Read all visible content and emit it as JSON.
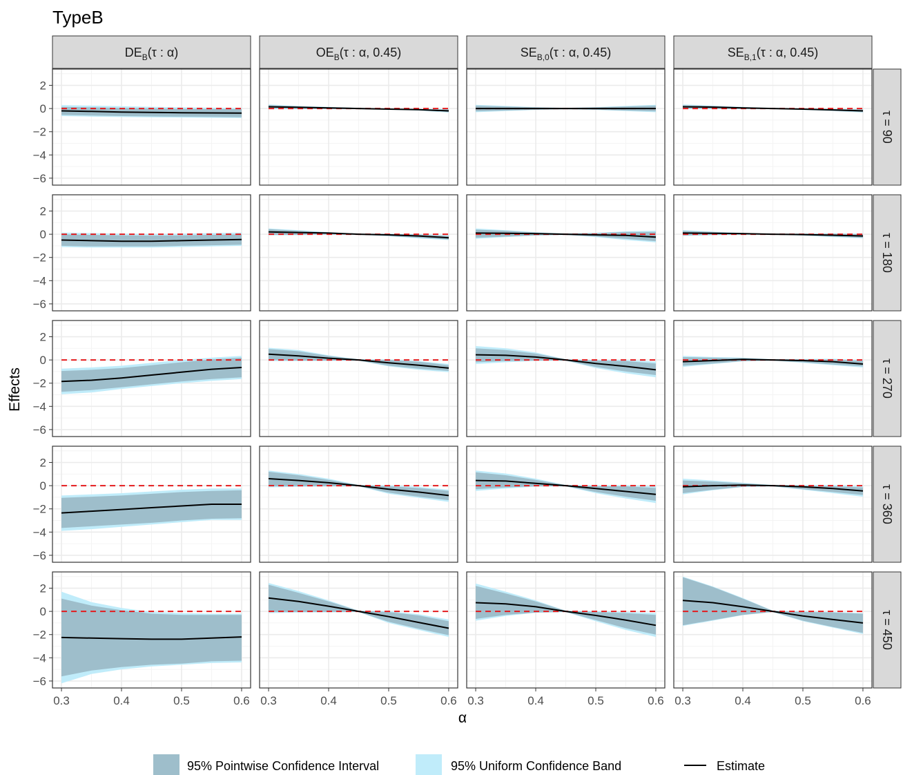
{
  "chart_data": {
    "type": "line",
    "title": "TypeB",
    "xlabel": "α",
    "ylabel": "Effects",
    "xlim": [
      0.285,
      0.615
    ],
    "ylim": [
      -6.6,
      3.4
    ],
    "x_ticks": [
      0.3,
      0.4,
      0.5,
      0.6
    ],
    "x_tick_labels": [
      "0.3",
      "0.4",
      "0.5",
      "0.6"
    ],
    "y_ticks": [
      2,
      0,
      -2,
      -4,
      -6
    ],
    "y_tick_labels": [
      "2",
      "0",
      "−2",
      "−4",
      "−6"
    ],
    "reference_line": {
      "y": 0,
      "style": "dashed"
    },
    "grid": true,
    "legend_position": "bottom",
    "legend": [
      {
        "key": "pointwise",
        "label": "95% Pointwise Confidence Interval"
      },
      {
        "key": "uniform",
        "label": "95% Uniform Confidence Band"
      },
      {
        "key": "estimate",
        "label": "Estimate"
      }
    ],
    "colors": {
      "pointwise": "#9ebecb",
      "uniform": "#c0ecfa",
      "estimate": "#000000",
      "reference": "#e41a1c",
      "strip_background": "#d9d9d9",
      "panel_border": "#333333",
      "grid_major": "#ebebeb",
      "grid_minor": "#f4f4f4"
    },
    "columns": [
      {
        "main": "DE",
        "sub": "B",
        "args": "(τ : α)"
      },
      {
        "main": "OE",
        "sub": "B",
        "args": "(τ : α, 0.45)"
      },
      {
        "main": "SE",
        "sub": "B,0",
        "args": "(τ : α, 0.45)"
      },
      {
        "main": "SE",
        "sub": "B,1",
        "args": "(τ : α, 0.45)"
      }
    ],
    "rows": [
      "τ = 90",
      "τ = 180",
      "τ = 270",
      "τ = 360",
      "τ = 450"
    ],
    "x": [
      0.3,
      0.35,
      0.4,
      0.45,
      0.5,
      0.55,
      0.6
    ],
    "panels": [
      [
        {
          "estimate": [
            -0.2,
            -0.25,
            -0.3,
            -0.33,
            -0.36,
            -0.38,
            -0.4
          ],
          "pw_low": [
            -0.55,
            -0.6,
            -0.65,
            -0.68,
            -0.7,
            -0.72,
            -0.75
          ],
          "pw_high": [
            0.15,
            0.1,
            0.05,
            0.02,
            -0.02,
            -0.04,
            -0.05
          ],
          "ub_low": [
            -0.65,
            -0.7,
            -0.73,
            -0.76,
            -0.78,
            -0.8,
            -0.82
          ],
          "ub_high": [
            0.3,
            0.25,
            0.2,
            0.15,
            0.1,
            0.07,
            0.05
          ]
        },
        {
          "estimate": [
            0.15,
            0.1,
            0.05,
            0.0,
            -0.05,
            -0.1,
            -0.2
          ],
          "pw_low": [
            0.0,
            -0.03,
            -0.04,
            -0.04,
            -0.08,
            -0.15,
            -0.3
          ],
          "pw_high": [
            0.3,
            0.2,
            0.12,
            0.05,
            -0.02,
            -0.05,
            -0.1
          ],
          "ub_low": [
            -0.05,
            -0.06,
            -0.05,
            -0.05,
            -0.1,
            -0.18,
            -0.35
          ],
          "ub_high": [
            0.35,
            0.22,
            0.14,
            0.06,
            0.0,
            -0.04,
            -0.05
          ]
        },
        {
          "estimate": [
            0.0,
            0.0,
            0.0,
            0.0,
            0.0,
            0.0,
            0.0
          ],
          "pw_low": [
            -0.25,
            -0.18,
            -0.1,
            -0.05,
            -0.1,
            -0.18,
            -0.25
          ],
          "pw_high": [
            0.25,
            0.18,
            0.1,
            0.05,
            0.1,
            0.18,
            0.25
          ],
          "ub_low": [
            -0.32,
            -0.22,
            -0.12,
            -0.06,
            -0.12,
            -0.22,
            -0.32
          ],
          "ub_high": [
            0.32,
            0.22,
            0.12,
            0.06,
            0.12,
            0.22,
            0.32
          ]
        },
        {
          "estimate": [
            0.15,
            0.12,
            0.05,
            0.0,
            -0.05,
            -0.12,
            -0.2
          ],
          "pw_low": [
            0.0,
            -0.02,
            -0.03,
            -0.02,
            -0.1,
            -0.2,
            -0.3
          ],
          "pw_high": [
            0.3,
            0.22,
            0.12,
            0.03,
            0.0,
            -0.05,
            -0.1
          ],
          "ub_low": [
            -0.05,
            -0.04,
            -0.04,
            -0.03,
            -0.12,
            -0.22,
            -0.35
          ],
          "ub_high": [
            0.35,
            0.25,
            0.14,
            0.05,
            0.02,
            -0.03,
            -0.05
          ]
        }
      ],
      [
        {
          "estimate": [
            -0.5,
            -0.55,
            -0.6,
            -0.6,
            -0.55,
            -0.5,
            -0.45
          ],
          "pw_low": [
            -1.0,
            -1.05,
            -1.05,
            -1.05,
            -1.0,
            -0.95,
            -0.9
          ],
          "pw_high": [
            0.0,
            -0.05,
            -0.1,
            -0.12,
            -0.1,
            -0.05,
            0.0
          ],
          "ub_low": [
            -1.1,
            -1.15,
            -1.15,
            -1.15,
            -1.1,
            -1.05,
            -1.0
          ],
          "ub_high": [
            0.15,
            0.1,
            0.05,
            0.02,
            0.05,
            0.1,
            0.15
          ]
        },
        {
          "estimate": [
            0.2,
            0.15,
            0.1,
            0.0,
            -0.05,
            -0.15,
            -0.3
          ],
          "pw_low": [
            -0.05,
            -0.05,
            -0.02,
            -0.03,
            -0.15,
            -0.3,
            -0.45
          ],
          "pw_high": [
            0.45,
            0.3,
            0.15,
            0.03,
            0.02,
            -0.03,
            -0.15
          ],
          "ub_low": [
            -0.1,
            -0.08,
            -0.04,
            -0.04,
            -0.18,
            -0.35,
            -0.5
          ],
          "ub_high": [
            0.5,
            0.35,
            0.18,
            0.05,
            0.05,
            0.0,
            -0.1
          ]
        },
        {
          "estimate": [
            0.1,
            0.08,
            0.05,
            0.0,
            -0.05,
            -0.1,
            -0.25
          ],
          "pw_low": [
            -0.3,
            -0.2,
            -0.1,
            -0.05,
            -0.2,
            -0.4,
            -0.6
          ],
          "pw_high": [
            0.4,
            0.3,
            0.15,
            0.05,
            0.1,
            0.2,
            0.2
          ],
          "ub_low": [
            -0.4,
            -0.25,
            -0.12,
            -0.06,
            -0.25,
            -0.5,
            -0.7
          ],
          "ub_high": [
            0.5,
            0.35,
            0.18,
            0.06,
            0.12,
            0.25,
            0.3
          ]
        },
        {
          "estimate": [
            0.1,
            0.08,
            0.05,
            0.0,
            -0.03,
            -0.08,
            -0.15
          ],
          "pw_low": [
            -0.1,
            -0.06,
            -0.03,
            -0.02,
            -0.1,
            -0.2,
            -0.3
          ],
          "pw_high": [
            0.3,
            0.2,
            0.1,
            0.02,
            0.05,
            0.05,
            0.0
          ],
          "ub_low": [
            -0.15,
            -0.08,
            -0.04,
            -0.03,
            -0.12,
            -0.25,
            -0.35
          ],
          "ub_high": [
            0.35,
            0.22,
            0.12,
            0.03,
            0.06,
            0.08,
            0.05
          ]
        }
      ],
      [
        {
          "estimate": [
            -1.85,
            -1.75,
            -1.55,
            -1.3,
            -1.05,
            -0.8,
            -0.65
          ],
          "pw_low": [
            -2.75,
            -2.6,
            -2.35,
            -2.1,
            -1.85,
            -1.65,
            -1.5
          ],
          "pw_high": [
            -0.95,
            -0.85,
            -0.7,
            -0.45,
            -0.2,
            0.05,
            0.2
          ],
          "ub_low": [
            -2.95,
            -2.8,
            -2.5,
            -2.25,
            -2.0,
            -1.8,
            -1.65
          ],
          "ub_high": [
            -0.75,
            -0.65,
            -0.5,
            -0.25,
            0.0,
            0.2,
            0.35
          ]
        },
        {
          "estimate": [
            0.5,
            0.35,
            0.15,
            0.0,
            -0.25,
            -0.45,
            -0.7
          ],
          "pw_low": [
            0.0,
            -0.05,
            -0.05,
            -0.05,
            -0.5,
            -0.75,
            -0.95
          ],
          "pw_high": [
            0.95,
            0.75,
            0.35,
            0.05,
            0.0,
            -0.15,
            -0.45
          ],
          "ub_low": [
            -0.1,
            -0.1,
            -0.08,
            -0.06,
            -0.55,
            -0.85,
            -1.05
          ],
          "ub_high": [
            1.05,
            0.85,
            0.4,
            0.06,
            0.05,
            -0.1,
            -0.35
          ]
        },
        {
          "estimate": [
            0.45,
            0.4,
            0.25,
            0.0,
            -0.3,
            -0.55,
            -0.85
          ],
          "pw_low": [
            -0.2,
            -0.1,
            -0.05,
            -0.05,
            -0.6,
            -1.0,
            -1.3
          ],
          "pw_high": [
            1.0,
            0.85,
            0.55,
            0.05,
            -0.05,
            -0.1,
            -0.3
          ],
          "ub_low": [
            -0.35,
            -0.2,
            -0.08,
            -0.06,
            -0.7,
            -1.15,
            -1.5
          ],
          "ub_high": [
            1.2,
            1.0,
            0.65,
            0.06,
            0.0,
            0.0,
            -0.15
          ]
        },
        {
          "estimate": [
            -0.15,
            -0.05,
            0.05,
            0.0,
            -0.05,
            -0.15,
            -0.35
          ],
          "pw_low": [
            -0.5,
            -0.3,
            -0.1,
            -0.05,
            -0.2,
            -0.4,
            -0.55
          ],
          "pw_high": [
            0.25,
            0.2,
            0.15,
            0.05,
            0.05,
            0.05,
            -0.1
          ],
          "ub_low": [
            -0.6,
            -0.35,
            -0.12,
            -0.06,
            -0.25,
            -0.45,
            -0.65
          ],
          "ub_high": [
            0.35,
            0.25,
            0.2,
            0.06,
            0.08,
            0.1,
            0.0
          ]
        }
      ],
      [
        {
          "estimate": [
            -2.35,
            -2.2,
            -2.05,
            -1.9,
            -1.75,
            -1.6,
            -1.6
          ],
          "pw_low": [
            -3.65,
            -3.5,
            -3.35,
            -3.2,
            -3.0,
            -2.85,
            -2.8
          ],
          "pw_high": [
            -1.05,
            -0.95,
            -0.85,
            -0.7,
            -0.55,
            -0.45,
            -0.4
          ],
          "ub_low": [
            -3.9,
            -3.75,
            -3.55,
            -3.35,
            -3.15,
            -2.95,
            -2.95
          ],
          "ub_high": [
            -0.85,
            -0.75,
            -0.65,
            -0.5,
            -0.35,
            -0.25,
            -0.25
          ]
        },
        {
          "estimate": [
            0.6,
            0.45,
            0.25,
            0.0,
            -0.3,
            -0.55,
            -0.85
          ],
          "pw_low": [
            -0.05,
            -0.05,
            -0.05,
            -0.05,
            -0.6,
            -0.95,
            -1.25
          ],
          "pw_high": [
            1.2,
            0.9,
            0.5,
            0.05,
            -0.05,
            -0.2,
            -0.45
          ],
          "ub_low": [
            -0.15,
            -0.1,
            -0.07,
            -0.06,
            -0.7,
            -1.05,
            -1.4
          ],
          "ub_high": [
            1.3,
            1.0,
            0.6,
            0.06,
            0.02,
            -0.1,
            -0.35
          ]
        },
        {
          "estimate": [
            0.45,
            0.4,
            0.2,
            0.0,
            -0.25,
            -0.5,
            -0.75
          ],
          "pw_low": [
            -0.3,
            -0.15,
            -0.05,
            -0.05,
            -0.55,
            -0.95,
            -1.3
          ],
          "pw_high": [
            1.15,
            0.9,
            0.5,
            0.05,
            -0.05,
            -0.05,
            -0.2
          ],
          "ub_low": [
            -0.45,
            -0.25,
            -0.08,
            -0.06,
            -0.65,
            -1.1,
            -1.5
          ],
          "ub_high": [
            1.3,
            1.05,
            0.6,
            0.06,
            0.02,
            0.05,
            -0.05
          ]
        },
        {
          "estimate": [
            -0.1,
            0.0,
            0.05,
            0.0,
            -0.1,
            -0.25,
            -0.45
          ],
          "pw_low": [
            -0.65,
            -0.35,
            -0.1,
            -0.05,
            -0.3,
            -0.55,
            -0.8
          ],
          "pw_high": [
            0.45,
            0.35,
            0.2,
            0.05,
            0.0,
            -0.05,
            -0.15
          ],
          "ub_low": [
            -0.75,
            -0.4,
            -0.12,
            -0.06,
            -0.35,
            -0.65,
            -0.95
          ],
          "ub_high": [
            0.6,
            0.45,
            0.25,
            0.06,
            0.05,
            0.05,
            -0.05
          ]
        }
      ],
      [
        {
          "estimate": [
            -2.25,
            -2.3,
            -2.35,
            -2.4,
            -2.4,
            -2.3,
            -2.2
          ],
          "pw_low": [
            -5.6,
            -5.1,
            -4.8,
            -4.6,
            -4.5,
            -4.3,
            -4.25
          ],
          "pw_high": [
            1.1,
            0.5,
            0.1,
            -0.2,
            -0.3,
            -0.3,
            -0.3
          ],
          "ub_low": [
            -6.2,
            -5.4,
            -5.0,
            -4.75,
            -4.6,
            -4.45,
            -4.4
          ],
          "ub_high": [
            1.7,
            0.8,
            0.3,
            -0.05,
            -0.15,
            -0.2,
            -0.2
          ]
        },
        {
          "estimate": [
            1.15,
            0.85,
            0.45,
            0.0,
            -0.45,
            -0.95,
            -1.45
          ],
          "pw_low": [
            -0.05,
            -0.05,
            -0.05,
            -0.05,
            -0.9,
            -1.5,
            -2.05
          ],
          "pw_high": [
            2.3,
            1.6,
            0.85,
            0.05,
            -0.05,
            -0.35,
            -0.85
          ],
          "ub_low": [
            -0.15,
            -0.1,
            -0.08,
            -0.06,
            -1.0,
            -1.6,
            -2.2
          ],
          "ub_high": [
            2.45,
            1.75,
            0.95,
            0.06,
            0.02,
            -0.25,
            -0.7
          ]
        },
        {
          "estimate": [
            0.75,
            0.65,
            0.4,
            0.0,
            -0.35,
            -0.75,
            -1.2
          ],
          "pw_low": [
            -0.65,
            -0.3,
            -0.1,
            -0.05,
            -0.75,
            -1.45,
            -2.0
          ],
          "pw_high": [
            2.2,
            1.55,
            0.85,
            0.05,
            -0.05,
            -0.15,
            -0.3
          ],
          "ub_low": [
            -0.8,
            -0.4,
            -0.12,
            -0.06,
            -0.85,
            -1.6,
            -2.2
          ],
          "ub_high": [
            2.4,
            1.7,
            0.95,
            0.06,
            0.02,
            -0.05,
            -0.15
          ]
        },
        {
          "estimate": [
            0.95,
            0.75,
            0.4,
            0.0,
            -0.4,
            -0.7,
            -1.0
          ],
          "pw_low": [
            -1.2,
            -0.75,
            -0.3,
            -0.05,
            -0.8,
            -1.35,
            -1.85
          ],
          "pw_high": [
            2.95,
            2.1,
            1.1,
            0.05,
            -0.05,
            -0.1,
            -0.2
          ],
          "ub_low": [
            -1.25,
            -0.8,
            -0.32,
            -0.06,
            -0.85,
            -1.4,
            -1.95
          ],
          "ub_high": [
            3.0,
            2.15,
            1.15,
            0.06,
            0.0,
            -0.05,
            -0.15
          ]
        }
      ]
    ]
  }
}
